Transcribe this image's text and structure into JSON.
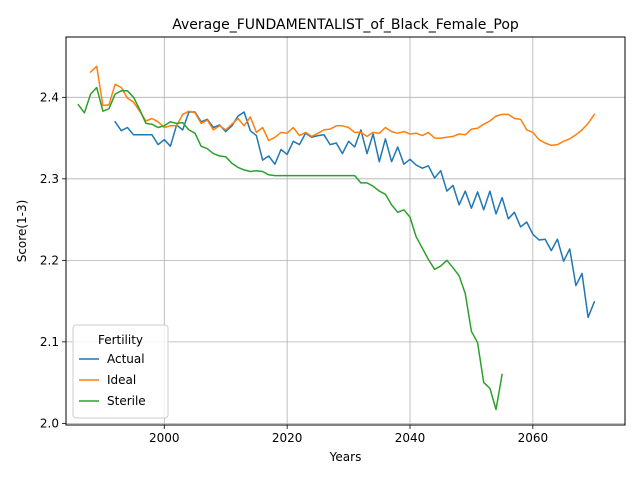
{
  "chart_data": {
    "type": "line",
    "title": "Average_FUNDAMENTALIST_of_Black_Female_Pop",
    "xlabel": "Years",
    "ylabel": "Score(1-3)",
    "xlim": [
      1984,
      2075
    ],
    "ylim": [
      1.998,
      2.474
    ],
    "x_ticks": [
      2000,
      2020,
      2040,
      2060
    ],
    "x_tick_labels": [
      "2000",
      "2020",
      "2040",
      "2060"
    ],
    "y_ticks": [
      2.0,
      2.1,
      2.2,
      2.3,
      2.4
    ],
    "y_tick_labels": [
      "2.0",
      "2.1",
      "2.2",
      "2.3",
      "2.4"
    ],
    "grid": true,
    "legend_title": "Fertility",
    "legend_position": "lower-left",
    "series": [
      {
        "name": "Actual",
        "color": "#1f77b4",
        "x": [
          1992,
          1993,
          1994,
          1995,
          1996,
          1997,
          1998,
          1999,
          2000,
          2001,
          2002,
          2003,
          2004,
          2005,
          2006,
          2007,
          2008,
          2009,
          2010,
          2011,
          2012,
          2013,
          2014,
          2015,
          2016,
          2017,
          2018,
          2019,
          2020,
          2021,
          2022,
          2023,
          2024,
          2025,
          2026,
          2027,
          2028,
          2029,
          2030,
          2031,
          2032,
          2033,
          2034,
          2035,
          2036,
          2037,
          2038,
          2039,
          2040,
          2041,
          2042,
          2043,
          2044,
          2045,
          2046,
          2047,
          2048,
          2049,
          2050,
          2051,
          2052,
          2053,
          2054,
          2055,
          2056,
          2057,
          2058,
          2059,
          2060,
          2061,
          2062,
          2063,
          2064,
          2065,
          2066,
          2067,
          2068,
          2069,
          2070
        ],
        "values": [
          2.37,
          2.359,
          2.363,
          2.354,
          2.354,
          2.354,
          2.354,
          2.342,
          2.348,
          2.34,
          2.366,
          2.36,
          2.382,
          2.382,
          2.37,
          2.373,
          2.363,
          2.366,
          2.358,
          2.365,
          2.377,
          2.382,
          2.359,
          2.353,
          2.323,
          2.328,
          2.318,
          2.336,
          2.33,
          2.346,
          2.342,
          2.356,
          2.351,
          2.353,
          2.354,
          2.342,
          2.344,
          2.331,
          2.346,
          2.339,
          2.36,
          2.331,
          2.355,
          2.321,
          2.349,
          2.321,
          2.339,
          2.318,
          2.324,
          2.317,
          2.313,
          2.316,
          2.301,
          2.31,
          2.285,
          2.292,
          2.268,
          2.285,
          2.264,
          2.284,
          2.262,
          2.285,
          2.257,
          2.277,
          2.251,
          2.259,
          2.241,
          2.247,
          2.232,
          2.225,
          2.226,
          2.212,
          2.226,
          2.199,
          2.214,
          2.169,
          2.184,
          2.13,
          2.149
        ]
      },
      {
        "name": "Ideal",
        "color": "#ff7f0e",
        "x": [
          1988,
          1989,
          1990,
          1991,
          1992,
          1993,
          1994,
          1995,
          1996,
          1997,
          1998,
          1999,
          2000,
          2001,
          2002,
          2003,
          2004,
          2005,
          2006,
          2007,
          2008,
          2009,
          2010,
          2011,
          2012,
          2013,
          2014,
          2015,
          2016,
          2017,
          2018,
          2019,
          2020,
          2021,
          2022,
          2023,
          2024,
          2025,
          2026,
          2027,
          2028,
          2029,
          2030,
          2031,
          2032,
          2033,
          2034,
          2035,
          2036,
          2037,
          2038,
          2039,
          2040,
          2041,
          2042,
          2043,
          2044,
          2045,
          2046,
          2047,
          2048,
          2049,
          2050,
          2051,
          2052,
          2053,
          2054,
          2055,
          2056,
          2057,
          2058,
          2059,
          2060,
          2061,
          2062,
          2063,
          2064,
          2065,
          2066,
          2067,
          2068,
          2069,
          2070
        ],
        "values": [
          2.431,
          2.438,
          2.39,
          2.391,
          2.416,
          2.412,
          2.399,
          2.394,
          2.383,
          2.371,
          2.374,
          2.37,
          2.363,
          2.365,
          2.365,
          2.379,
          2.383,
          2.381,
          2.368,
          2.372,
          2.36,
          2.365,
          2.36,
          2.367,
          2.374,
          2.365,
          2.376,
          2.357,
          2.363,
          2.347,
          2.351,
          2.357,
          2.356,
          2.363,
          2.353,
          2.357,
          2.352,
          2.356,
          2.36,
          2.361,
          2.365,
          2.365,
          2.363,
          2.357,
          2.357,
          2.352,
          2.357,
          2.356,
          2.363,
          2.358,
          2.356,
          2.358,
          2.355,
          2.356,
          2.353,
          2.357,
          2.35,
          2.35,
          2.351,
          2.352,
          2.355,
          2.354,
          2.361,
          2.362,
          2.367,
          2.371,
          2.377,
          2.379,
          2.379,
          2.374,
          2.373,
          2.36,
          2.357,
          2.348,
          2.344,
          2.341,
          2.342,
          2.346,
          2.349,
          2.354,
          2.36,
          2.368,
          2.379
        ]
      },
      {
        "name": "Sterile",
        "color": "#2ca02c",
        "x": [
          1986,
          1987,
          1988,
          1989,
          1990,
          1991,
          1992,
          1993,
          1994,
          1995,
          1996,
          1997,
          1998,
          1999,
          2000,
          2001,
          2002,
          2003,
          2004,
          2005,
          2006,
          2007,
          2008,
          2009,
          2010,
          2011,
          2012,
          2013,
          2014,
          2015,
          2016,
          2017,
          2018,
          2019,
          2020,
          2021,
          2022,
          2023,
          2024,
          2025,
          2026,
          2027,
          2028,
          2029,
          2030,
          2031,
          2032,
          2033,
          2034,
          2035,
          2036,
          2037,
          2038,
          2039,
          2040,
          2041,
          2042,
          2043,
          2044,
          2045,
          2046,
          2047,
          2048,
          2049,
          2050,
          2051,
          2052,
          2053,
          2054,
          2055
        ],
        "values": [
          2.391,
          2.381,
          2.404,
          2.412,
          2.383,
          2.386,
          2.404,
          2.408,
          2.408,
          2.4,
          2.385,
          2.368,
          2.367,
          2.363,
          2.365,
          2.37,
          2.368,
          2.369,
          2.36,
          2.356,
          2.34,
          2.337,
          2.331,
          2.328,
          2.327,
          2.319,
          2.314,
          2.311,
          2.309,
          2.31,
          2.309,
          2.305,
          2.304,
          2.304,
          2.304,
          2.304,
          2.304,
          2.304,
          2.304,
          2.304,
          2.304,
          2.304,
          2.304,
          2.304,
          2.304,
          2.304,
          2.295,
          2.295,
          2.291,
          2.285,
          2.281,
          2.268,
          2.259,
          2.262,
          2.253,
          2.229,
          2.215,
          2.201,
          2.189,
          2.193,
          2.2,
          2.191,
          2.181,
          2.159,
          2.113,
          2.099,
          2.05,
          2.043,
          2.017,
          2.06
        ]
      }
    ]
  }
}
